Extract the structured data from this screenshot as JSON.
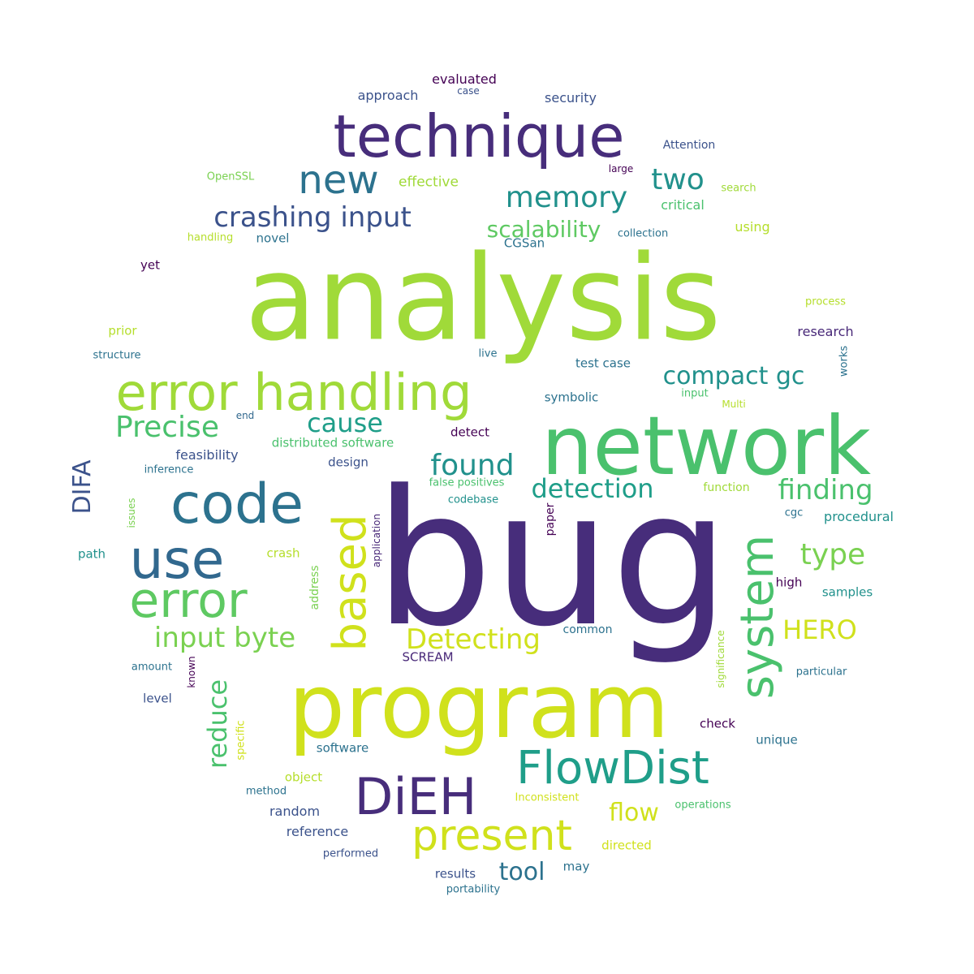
{
  "words": [
    {
      "text": "bug",
      "color": "#472d7b"
    },
    {
      "text": "analysis",
      "color": "#a0da39"
    },
    {
      "text": "program",
      "color": "#d0e11c"
    },
    {
      "text": "network",
      "color": "#4ac16d"
    },
    {
      "text": "technique",
      "color": "#472d7b"
    },
    {
      "text": "error handling",
      "color": "#a0da39"
    },
    {
      "text": "code",
      "color": "#2c728e"
    },
    {
      "text": "use",
      "color": "#31688e"
    },
    {
      "text": "error",
      "color": "#5ec962"
    },
    {
      "text": "FlowDist",
      "color": "#1f9e89"
    },
    {
      "text": "DiEH",
      "color": "#472d7b"
    },
    {
      "text": "present",
      "color": "#d0e11c"
    },
    {
      "text": "based",
      "color": "#d0e11c"
    },
    {
      "text": "system",
      "color": "#4ac16d"
    },
    {
      "text": "new",
      "color": "#2c728e"
    },
    {
      "text": "crashing input",
      "color": "#3b528b"
    },
    {
      "text": "memory",
      "color": "#21918c"
    },
    {
      "text": "two",
      "color": "#21918c"
    },
    {
      "text": "scalability",
      "color": "#5ec962"
    },
    {
      "text": "Precise",
      "color": "#4ac16d"
    },
    {
      "text": "cause",
      "color": "#1f9e89"
    },
    {
      "text": "compact gc",
      "color": "#21918c"
    },
    {
      "text": "found",
      "color": "#21918c"
    },
    {
      "text": "detection",
      "color": "#1f9e89"
    },
    {
      "text": "finding",
      "color": "#4ac16d"
    },
    {
      "text": "type",
      "color": "#7ad151"
    },
    {
      "text": "input byte",
      "color": "#7ad151"
    },
    {
      "text": "Detecting",
      "color": "#d0e11c"
    },
    {
      "text": "HERO",
      "color": "#d0e11c"
    },
    {
      "text": "DIFA",
      "color": "#3b528b"
    },
    {
      "text": "reduce",
      "color": "#4ac16d"
    },
    {
      "text": "flow",
      "color": "#d0e11c"
    },
    {
      "text": "tool",
      "color": "#2c728e"
    },
    {
      "text": "evaluated",
      "color": "#440154"
    },
    {
      "text": "approach",
      "color": "#3b528b"
    },
    {
      "text": "case",
      "color": "#3b528b"
    },
    {
      "text": "security",
      "color": "#3b528b"
    },
    {
      "text": "Attention",
      "color": "#3b528b"
    },
    {
      "text": "OpenSSL",
      "color": "#7ad151"
    },
    {
      "text": "effective",
      "color": "#a0da39"
    },
    {
      "text": "large",
      "color": "#440154"
    },
    {
      "text": "search",
      "color": "#a0da39"
    },
    {
      "text": "critical",
      "color": "#4ac16d"
    },
    {
      "text": "handling",
      "color": "#b5de2b"
    },
    {
      "text": "novel",
      "color": "#2c728e"
    },
    {
      "text": "CGSan",
      "color": "#2c728e"
    },
    {
      "text": "collection",
      "color": "#2c728e"
    },
    {
      "text": "using",
      "color": "#b5de2b"
    },
    {
      "text": "yet",
      "color": "#440154"
    },
    {
      "text": "process",
      "color": "#b5de2b"
    },
    {
      "text": "prior",
      "color": "#b5de2b"
    },
    {
      "text": "research",
      "color": "#482878"
    },
    {
      "text": "structure",
      "color": "#2c728e"
    },
    {
      "text": "live",
      "color": "#2c728e"
    },
    {
      "text": "test case",
      "color": "#2c728e"
    },
    {
      "text": "works",
      "color": "#2c728e"
    },
    {
      "text": "input",
      "color": "#4ac16d"
    },
    {
      "text": "symbolic",
      "color": "#2c728e"
    },
    {
      "text": "Multi",
      "color": "#b5de2b"
    },
    {
      "text": "end",
      "color": "#31688e"
    },
    {
      "text": "detect",
      "color": "#440154"
    },
    {
      "text": "distributed software",
      "color": "#4ac16d"
    },
    {
      "text": "feasibility",
      "color": "#3b528b"
    },
    {
      "text": "inference",
      "color": "#2c728e"
    },
    {
      "text": "design",
      "color": "#3b528b"
    },
    {
      "text": "false positives",
      "color": "#4ac16d"
    },
    {
      "text": "codebase",
      "color": "#21918c"
    },
    {
      "text": "function",
      "color": "#a0da39"
    },
    {
      "text": "issues",
      "color": "#7ad151"
    },
    {
      "text": "application",
      "color": "#482878"
    },
    {
      "text": "paper",
      "color": "#440154"
    },
    {
      "text": "cgc",
      "color": "#2c728e"
    },
    {
      "text": "procedural",
      "color": "#21918c"
    },
    {
      "text": "path",
      "color": "#21918c"
    },
    {
      "text": "crash",
      "color": "#b5de2b"
    },
    {
      "text": "address",
      "color": "#7ad151"
    },
    {
      "text": "high",
      "color": "#440154"
    },
    {
      "text": "samples",
      "color": "#21918c"
    },
    {
      "text": "common",
      "color": "#2c728e"
    },
    {
      "text": "SCREAM",
      "color": "#482878"
    },
    {
      "text": "amount",
      "color": "#2c728e"
    },
    {
      "text": "known",
      "color": "#440154"
    },
    {
      "text": "significance",
      "color": "#a0da39"
    },
    {
      "text": "particular",
      "color": "#2c728e"
    },
    {
      "text": "level",
      "color": "#3b528b"
    },
    {
      "text": "check",
      "color": "#440154"
    },
    {
      "text": "specific",
      "color": "#d0e11c"
    },
    {
      "text": "unique",
      "color": "#2c728e"
    },
    {
      "text": "software",
      "color": "#2c728e"
    },
    {
      "text": "object",
      "color": "#b5de2b"
    },
    {
      "text": "method",
      "color": "#2c728e"
    },
    {
      "text": "Inconsistent",
      "color": "#d0e11c"
    },
    {
      "text": "operations",
      "color": "#4ac16d"
    },
    {
      "text": "random",
      "color": "#3b528b"
    },
    {
      "text": "reference",
      "color": "#3b528b"
    },
    {
      "text": "directed",
      "color": "#d0e11c"
    },
    {
      "text": "performed",
      "color": "#3b528b"
    },
    {
      "text": "may",
      "color": "#2c728e"
    },
    {
      "text": "results",
      "color": "#3b528b"
    },
    {
      "text": "portability",
      "color": "#2c728e"
    }
  ]
}
